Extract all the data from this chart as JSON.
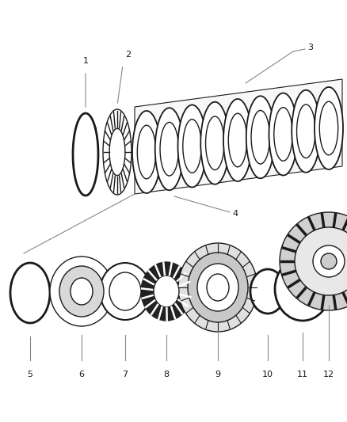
{
  "bg_color": "#ffffff",
  "line_color": "#1a1a1a",
  "dark_color": "#222222",
  "gray_color": "#888888",
  "light_gray": "#cccccc",
  "figw": 4.38,
  "figh": 5.33,
  "dpi": 100
}
